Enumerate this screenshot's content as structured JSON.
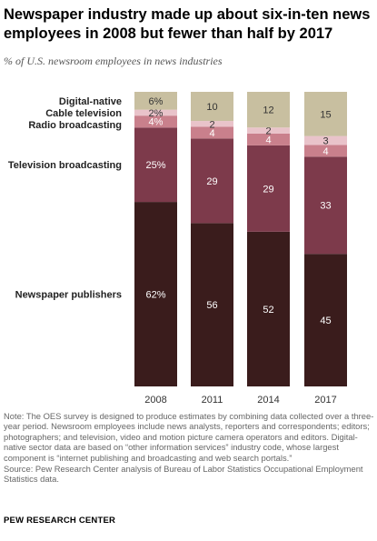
{
  "title": "Newspaper industry made up about six-in-ten news employees in 2008 but fewer than half by 2017",
  "subtitle": "% of U.S. newsroom employees in news industries",
  "note": "Note: The OES survey is designed to produce estimates by combining data collected over a three-year period. Newsroom employees include news analysts, reporters and correspondents; editors; photographers; and television, video and motion picture camera operators and editors. Digital-native sector data are based on “other information services” industry code, whose largest component is “internet publishing and broadcasting and web search portals.”",
  "source": "Source: Pew Research Center analysis of Bureau of Labor Statistics Occupational Employment Statistics data.",
  "brand": "PEW RESEARCH CENTER",
  "chart_data": {
    "type": "bar",
    "stacked": true,
    "orientation": "vertical",
    "categories": [
      "2008",
      "2011",
      "2014",
      "2017"
    ],
    "series": [
      {
        "name": "Newspaper publishers",
        "values": [
          62,
          56,
          52,
          45
        ],
        "labels": [
          "62%",
          "56",
          "52",
          "45"
        ],
        "color": "#3a1c1c",
        "label_color": "#ffffff"
      },
      {
        "name": "Television broadcasting",
        "values": [
          25,
          29,
          29,
          33
        ],
        "labels": [
          "25%",
          "29",
          "29",
          "33"
        ],
        "color": "#7d3a4b",
        "label_color": "#ffffff"
      },
      {
        "name": "Radio broadcasting",
        "values": [
          4,
          4,
          4,
          4
        ],
        "labels": [
          "4%",
          "4",
          "4",
          "4"
        ],
        "color": "#c9808c",
        "label_color": "#ffffff"
      },
      {
        "name": "Cable television",
        "values": [
          2,
          2,
          2,
          3
        ],
        "labels": [
          "2%",
          "2",
          "2",
          "3"
        ],
        "color": "#e9c3ca",
        "label_color": "#333333"
      },
      {
        "name": "Digital-native",
        "values": [
          6,
          10,
          12,
          15
        ],
        "labels": [
          "6%",
          "10",
          "12",
          "15"
        ],
        "color": "#c8bfa0",
        "label_color": "#333333"
      }
    ],
    "ylim": [
      0,
      100
    ],
    "grid": false,
    "legend": "left, aligned with 2008 segments"
  }
}
